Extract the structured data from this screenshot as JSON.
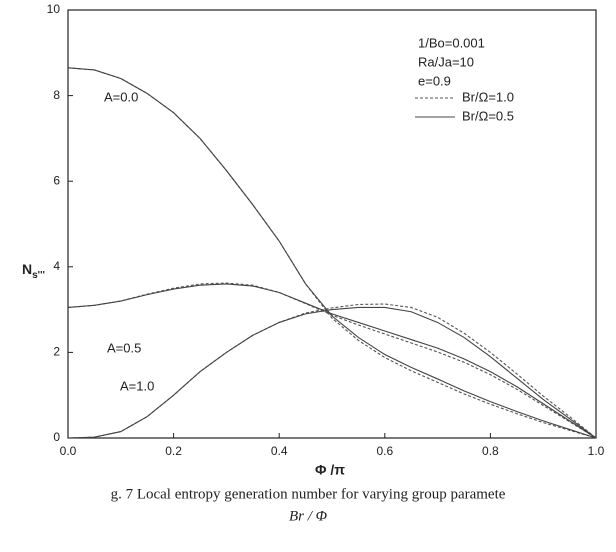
{
  "chart_data": {
    "type": "line",
    "x_label": "Φ /π",
    "y_label": "N",
    "y_label_sub": "s'''",
    "caption": "g. 7 Local entropy generation number for varying group paramete",
    "caption_line2": "Br / Φ",
    "annotations": [
      "1/Bo=0.001",
      "Ra/Ja=10",
      "e=0.9"
    ],
    "curve_labels": [
      "A=0.0",
      "A=0.5",
      "A=1.0"
    ],
    "x": [
      0,
      0.05,
      0.1,
      0.15,
      0.2,
      0.25,
      0.3,
      0.35,
      0.4,
      0.45,
      0.5,
      0.55,
      0.6,
      0.65,
      0.7,
      0.75,
      0.8,
      0.85,
      0.9,
      0.95,
      1.0
    ],
    "series": [
      {
        "name": "Br/Ω=1.0",
        "color": "#555555",
        "dash": "3 2",
        "curves": [
          [
            8.65,
            8.6,
            8.4,
            8.05,
            7.6,
            7.0,
            6.25,
            5.45,
            4.6,
            3.6,
            2.8,
            2.28,
            1.88,
            1.57,
            1.3,
            1.03,
            0.79,
            0.57,
            0.36,
            0.18,
            0
          ],
          [
            3.05,
            3.1,
            3.2,
            3.36,
            3.5,
            3.6,
            3.62,
            3.57,
            3.4,
            3.14,
            2.87,
            2.64,
            2.43,
            2.22,
            2.01,
            1.77,
            1.48,
            1.14,
            0.76,
            0.38,
            0
          ],
          [
            0,
            0.02,
            0.15,
            0.5,
            1.0,
            1.55,
            2.0,
            2.4,
            2.7,
            2.92,
            3.04,
            3.12,
            3.13,
            3.05,
            2.82,
            2.45,
            2.0,
            1.5,
            0.98,
            0.5,
            0
          ]
        ]
      },
      {
        "name": "Br/Ω=0.5",
        "color": "#444444",
        "dash": "",
        "curves": [
          [
            8.65,
            8.6,
            8.4,
            8.05,
            7.6,
            7.0,
            6.25,
            5.45,
            4.6,
            3.6,
            2.85,
            2.35,
            1.95,
            1.65,
            1.38,
            1.1,
            0.85,
            0.62,
            0.4,
            0.2,
            0
          ],
          [
            3.05,
            3.1,
            3.2,
            3.35,
            3.48,
            3.57,
            3.6,
            3.55,
            3.4,
            3.15,
            2.9,
            2.7,
            2.5,
            2.3,
            2.1,
            1.85,
            1.55,
            1.2,
            0.8,
            0.4,
            0
          ],
          [
            0,
            0.02,
            0.15,
            0.5,
            1.0,
            1.55,
            2.0,
            2.4,
            2.7,
            2.9,
            3.0,
            3.05,
            3.05,
            2.95,
            2.7,
            2.35,
            1.9,
            1.4,
            0.9,
            0.45,
            0
          ]
        ]
      }
    ],
    "xlim": [
      0,
      1.0
    ],
    "ylim": [
      0,
      10
    ],
    "xticks": [
      {
        "value": 0,
        "label": "0.0"
      },
      {
        "value": 0.2,
        "label": "0.2"
      },
      {
        "value": 0.4,
        "label": "0.4"
      },
      {
        "value": 0.6,
        "label": "0.6"
      },
      {
        "value": 0.8,
        "label": "0.8"
      },
      {
        "value": 1.0,
        "label": "1.0"
      }
    ],
    "yticks": [
      0,
      2,
      4,
      6,
      8,
      10
    ]
  }
}
